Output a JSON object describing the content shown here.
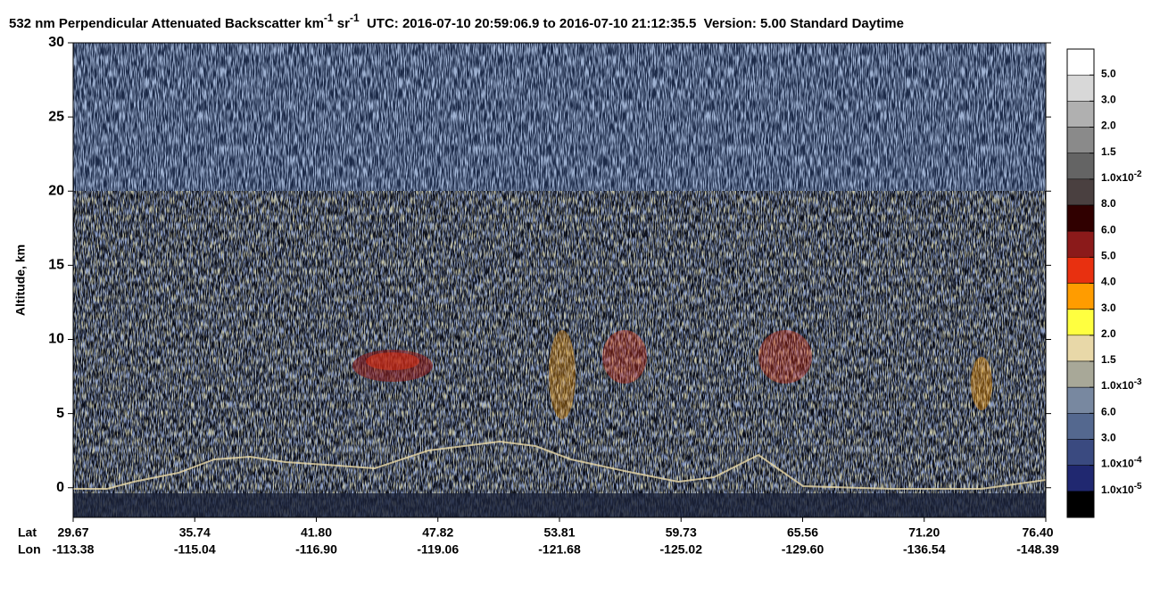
{
  "chart_data": {
    "type": "heatmap",
    "title": {
      "text": "532 nm Perpendicular Attenuated Backscatter km",
      "sup1": "-1",
      "mid": " sr",
      "sup2": "-1",
      "rest": "  UTC: 2016-07-10 20:59:06.9 to 2016-07-10 21:12:35.5  Version: 5.00 Standard Daytime"
    },
    "y_label": "Altitude, km",
    "ylim": [
      -2,
      30
    ],
    "yticks": [
      0,
      5,
      10,
      15,
      20,
      25,
      30
    ],
    "x_row_labels": [
      "Lat",
      "Lon"
    ],
    "lat": [
      "29.67",
      "35.74",
      "41.80",
      "47.82",
      "53.81",
      "59.73",
      "65.56",
      "71.20",
      "76.40"
    ],
    "lon": [
      "-113.38",
      "-115.04",
      "-116.90",
      "-119.06",
      "-121.68",
      "-125.02",
      "-129.60",
      "-136.54",
      "-148.39"
    ],
    "colorbar": {
      "colors": [
        "#ffffff",
        "#d8d8d8",
        "#b0b0b0",
        "#8a8a8a",
        "#646464",
        "#4a4040",
        "#300000",
        "#8b1a1a",
        "#e83010",
        "#ff9c00",
        "#ffff40",
        "#e8d8a8",
        "#a8a898",
        "#7888a0",
        "#54688f",
        "#3a4a80",
        "#202870",
        "#000000"
      ],
      "labels": [
        "5.0",
        "3.0",
        "2.0",
        "1.5",
        {
          "base": "1.0x10",
          "exp": "-2"
        },
        "8.0",
        "6.0",
        "5.0",
        "4.0",
        "3.0",
        "2.0",
        "1.5",
        {
          "base": "1.0x10",
          "exp": "-3"
        },
        "6.0",
        "3.0",
        {
          "base": "1.0x10",
          "exp": "-4"
        },
        {
          "base": "1.0x10",
          "exp": "-5"
        }
      ]
    }
  }
}
